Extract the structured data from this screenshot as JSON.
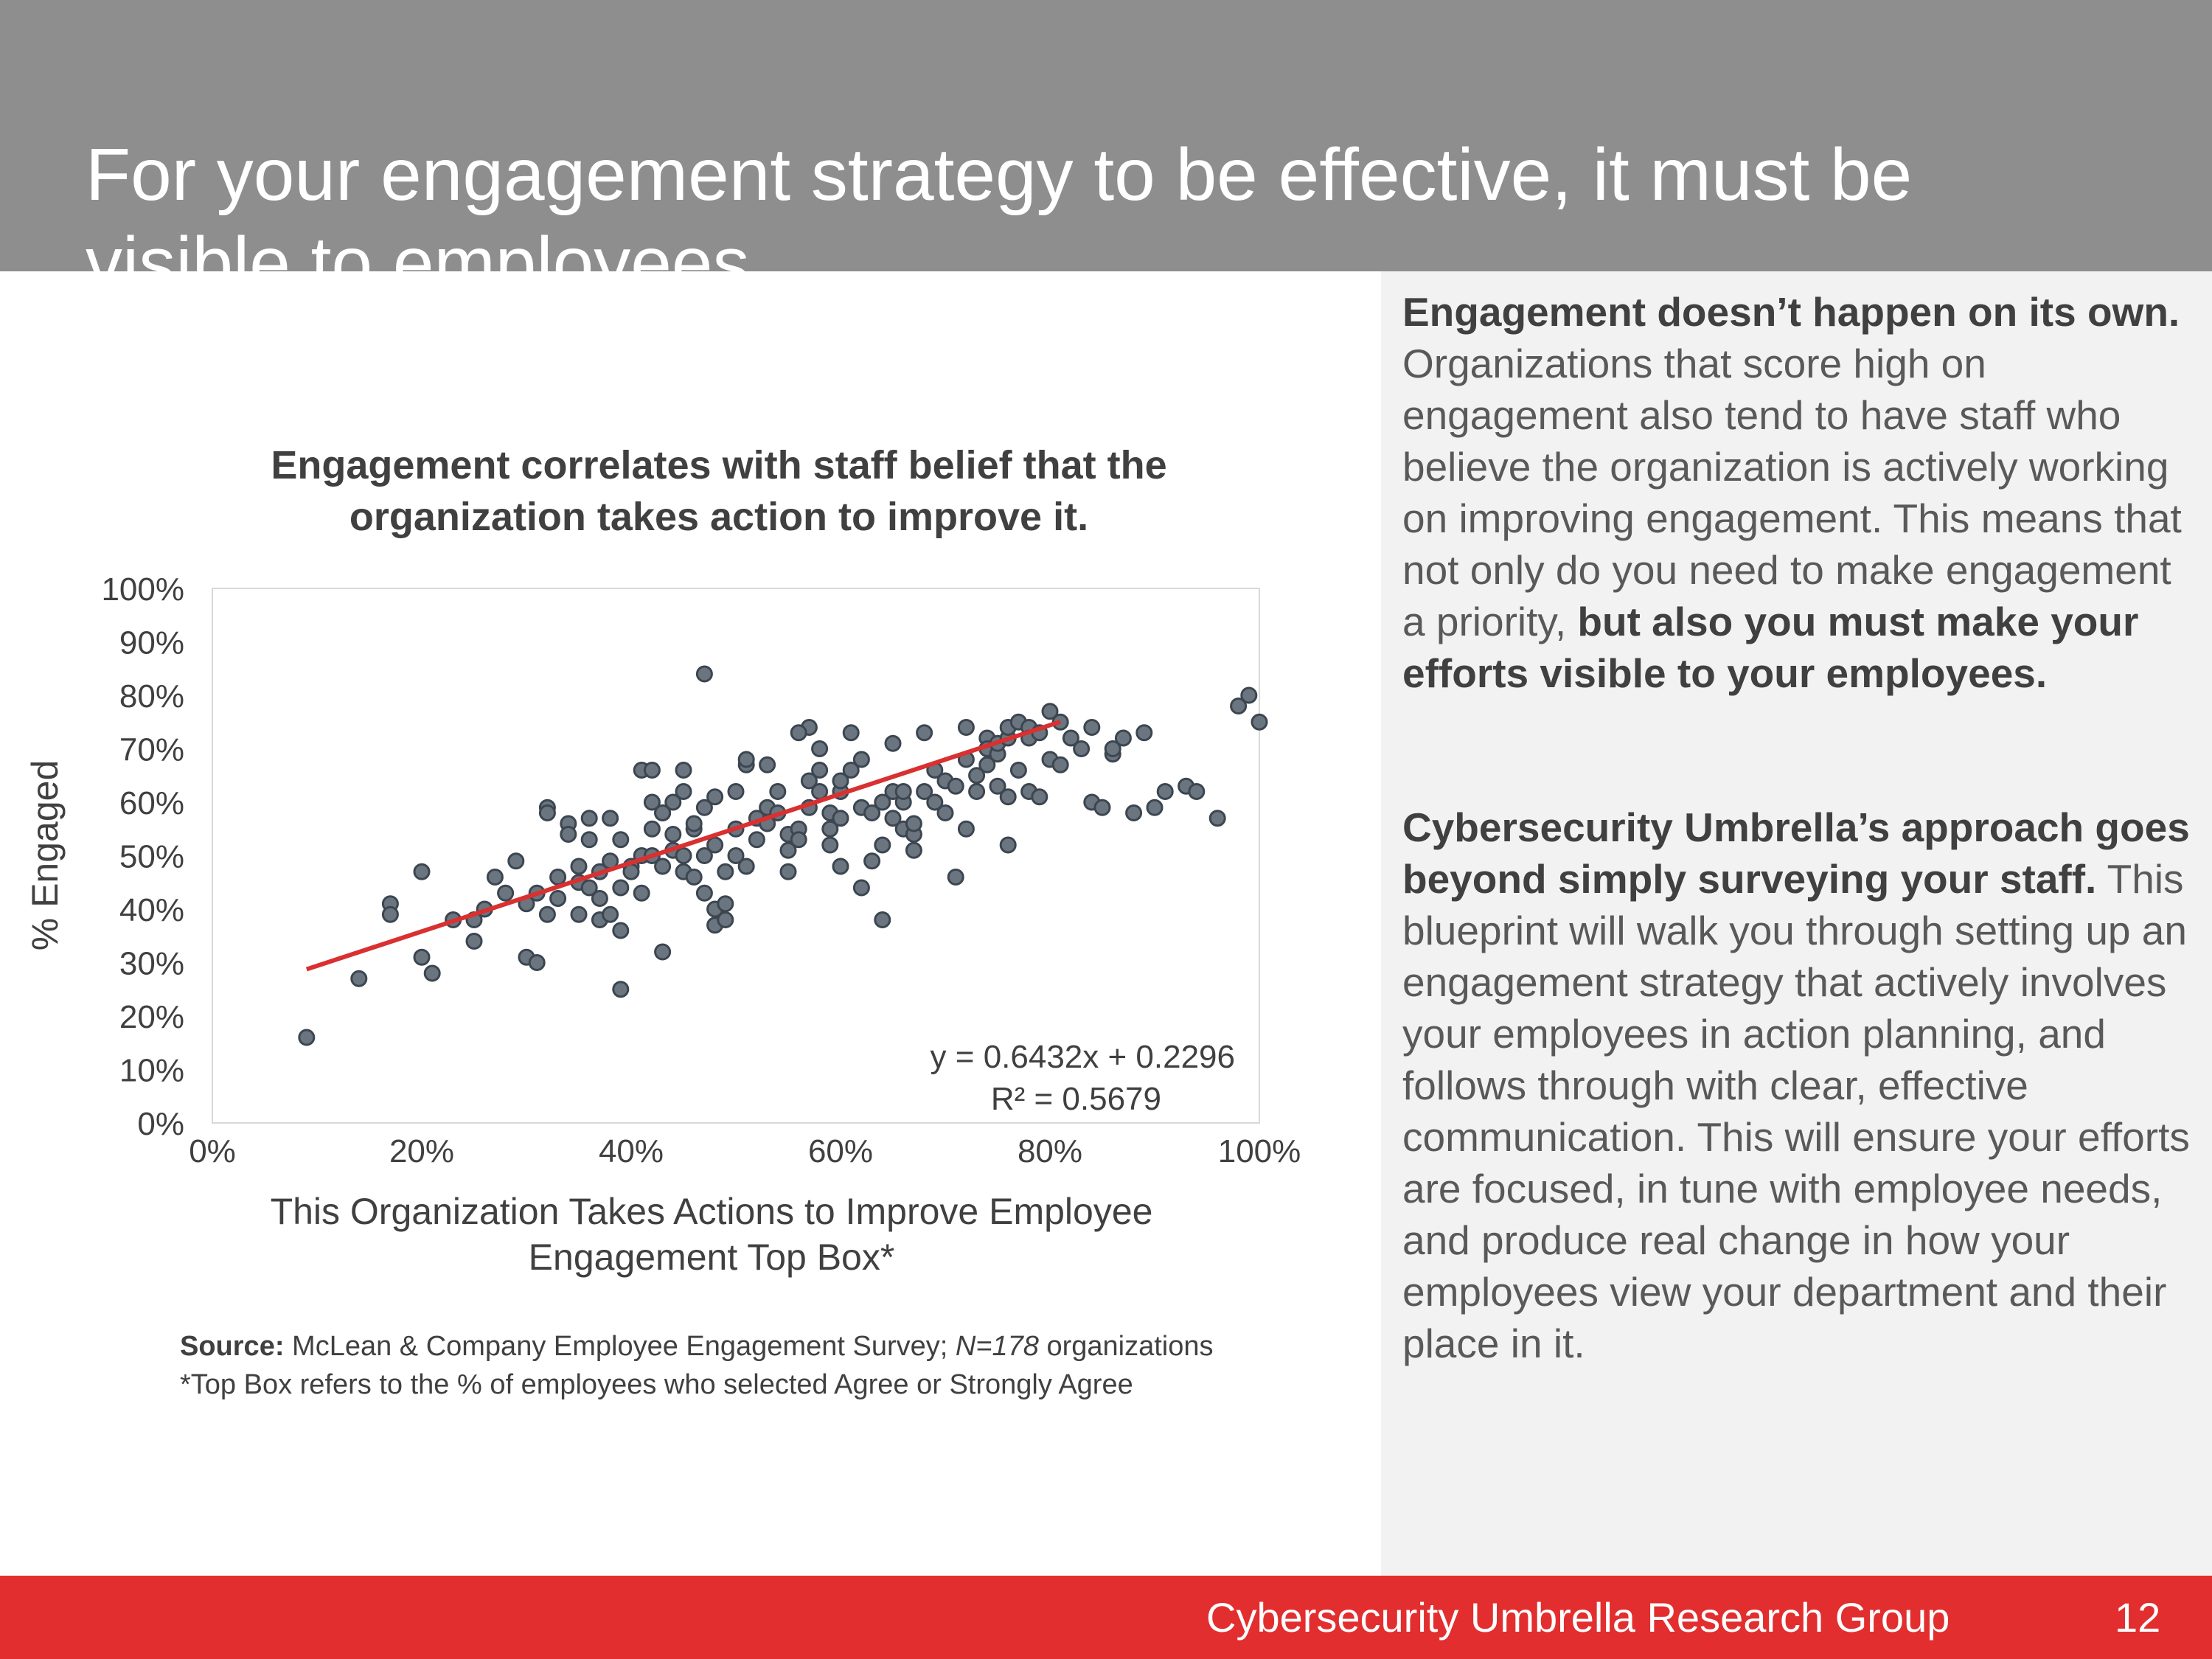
{
  "slide": {
    "title": "For your engagement strategy to be effective, it must be visible to employees"
  },
  "panel": {
    "p1_bold": "Engagement doesn’t happen on its own.",
    "p1_text": " Organizations that score high on engagement also tend to have staff who believe the organization is actively working on improving engagement. This means that not only do you need to make engagement a priority, ",
    "p1_bold2": "but also you must make your efforts visible to your employees.",
    "p2_bold": "Cybersecurity Umbrella’s approach goes beyond simply surveying your staff.",
    "p2_text": " This blueprint will walk you through setting up an engagement strategy that actively involves your employees in action planning, and follows through with clear, effective communication. This will ensure your efforts are focused, in tune with employee needs, and produce real change in how your employees view your department and their place in it."
  },
  "chart_data": {
    "type": "scatter",
    "title": "Engagement correlates with staff belief that the organization takes action to improve it.",
    "xlabel": "This Organization Takes Actions to Improve Employee Engagement Top Box*",
    "ylabel": "% Engaged",
    "xlim": [
      0,
      1
    ],
    "ylim": [
      0,
      1
    ],
    "x_ticks": [
      "0%",
      "20%",
      "40%",
      "60%",
      "80%",
      "100%"
    ],
    "y_ticks": [
      "0%",
      "10%",
      "20%",
      "30%",
      "40%",
      "50%",
      "60%",
      "70%",
      "80%",
      "90%",
      "100%"
    ],
    "grid": false,
    "point_color": "#6b7580",
    "trend_color": "#d93030",
    "trendline": {
      "slope": 0.6432,
      "intercept": 0.2296,
      "x_range": [
        0.09,
        0.81
      ]
    },
    "equation": "y = 0.6432x + 0.2296",
    "r_squared": "R² = 0.5679",
    "points": [
      [
        0.09,
        0.16
      ],
      [
        0.14,
        0.27
      ],
      [
        0.17,
        0.41
      ],
      [
        0.17,
        0.39
      ],
      [
        0.2,
        0.47
      ],
      [
        0.2,
        0.31
      ],
      [
        0.21,
        0.28
      ],
      [
        0.23,
        0.38
      ],
      [
        0.25,
        0.34
      ],
      [
        0.25,
        0.38
      ],
      [
        0.26,
        0.4
      ],
      [
        0.27,
        0.46
      ],
      [
        0.28,
        0.43
      ],
      [
        0.29,
        0.49
      ],
      [
        0.3,
        0.41
      ],
      [
        0.3,
        0.31
      ],
      [
        0.31,
        0.3
      ],
      [
        0.31,
        0.43
      ],
      [
        0.32,
        0.39
      ],
      [
        0.32,
        0.59
      ],
      [
        0.32,
        0.58
      ],
      [
        0.33,
        0.46
      ],
      [
        0.33,
        0.42
      ],
      [
        0.34,
        0.56
      ],
      [
        0.34,
        0.54
      ],
      [
        0.35,
        0.48
      ],
      [
        0.35,
        0.45
      ],
      [
        0.35,
        0.39
      ],
      [
        0.36,
        0.53
      ],
      [
        0.36,
        0.44
      ],
      [
        0.36,
        0.57
      ],
      [
        0.37,
        0.47
      ],
      [
        0.37,
        0.38
      ],
      [
        0.37,
        0.42
      ],
      [
        0.38,
        0.57
      ],
      [
        0.38,
        0.49
      ],
      [
        0.38,
        0.39
      ],
      [
        0.39,
        0.36
      ],
      [
        0.39,
        0.25
      ],
      [
        0.39,
        0.44
      ],
      [
        0.4,
        0.48
      ],
      [
        0.4,
        0.47
      ],
      [
        0.41,
        0.5
      ],
      [
        0.41,
        0.66
      ],
      [
        0.41,
        0.43
      ],
      [
        0.42,
        0.55
      ],
      [
        0.42,
        0.6
      ],
      [
        0.42,
        0.66
      ],
      [
        0.42,
        0.5
      ],
      [
        0.43,
        0.58
      ],
      [
        0.43,
        0.48
      ],
      [
        0.43,
        0.32
      ],
      [
        0.44,
        0.54
      ],
      [
        0.44,
        0.6
      ],
      [
        0.44,
        0.51
      ],
      [
        0.45,
        0.47
      ],
      [
        0.45,
        0.5
      ],
      [
        0.45,
        0.62
      ],
      [
        0.46,
        0.46
      ],
      [
        0.46,
        0.55
      ],
      [
        0.46,
        0.56
      ],
      [
        0.47,
        0.59
      ],
      [
        0.47,
        0.5
      ],
      [
        0.47,
        0.43
      ],
      [
        0.47,
        0.84
      ],
      [
        0.48,
        0.61
      ],
      [
        0.48,
        0.52
      ],
      [
        0.48,
        0.4
      ],
      [
        0.48,
        0.37
      ],
      [
        0.49,
        0.41
      ],
      [
        0.49,
        0.38
      ],
      [
        0.49,
        0.47
      ],
      [
        0.5,
        0.5
      ],
      [
        0.5,
        0.55
      ],
      [
        0.5,
        0.62
      ],
      [
        0.51,
        0.67
      ],
      [
        0.51,
        0.48
      ],
      [
        0.52,
        0.57
      ],
      [
        0.52,
        0.53
      ],
      [
        0.53,
        0.59
      ],
      [
        0.53,
        0.56
      ],
      [
        0.54,
        0.58
      ],
      [
        0.54,
        0.62
      ],
      [
        0.55,
        0.51
      ],
      [
        0.55,
        0.54
      ],
      [
        0.56,
        0.55
      ],
      [
        0.56,
        0.53
      ],
      [
        0.57,
        0.64
      ],
      [
        0.57,
        0.59
      ],
      [
        0.58,
        0.66
      ],
      [
        0.58,
        0.62
      ],
      [
        0.58,
        0.7
      ],
      [
        0.59,
        0.55
      ],
      [
        0.59,
        0.52
      ],
      [
        0.59,
        0.58
      ],
      [
        0.6,
        0.57
      ],
      [
        0.6,
        0.62
      ],
      [
        0.6,
        0.64
      ],
      [
        0.61,
        0.73
      ],
      [
        0.61,
        0.66
      ],
      [
        0.62,
        0.68
      ],
      [
        0.62,
        0.59
      ],
      [
        0.63,
        0.58
      ],
      [
        0.63,
        0.49
      ],
      [
        0.64,
        0.38
      ],
      [
        0.64,
        0.6
      ],
      [
        0.64,
        0.52
      ],
      [
        0.65,
        0.62
      ],
      [
        0.65,
        0.71
      ],
      [
        0.65,
        0.57
      ],
      [
        0.66,
        0.55
      ],
      [
        0.66,
        0.6
      ],
      [
        0.67,
        0.51
      ],
      [
        0.67,
        0.54
      ],
      [
        0.67,
        0.56
      ],
      [
        0.68,
        0.62
      ],
      [
        0.68,
        0.73
      ],
      [
        0.69,
        0.6
      ],
      [
        0.69,
        0.66
      ],
      [
        0.7,
        0.64
      ],
      [
        0.7,
        0.58
      ],
      [
        0.71,
        0.46
      ],
      [
        0.71,
        0.63
      ],
      [
        0.72,
        0.55
      ],
      [
        0.72,
        0.68
      ],
      [
        0.73,
        0.62
      ],
      [
        0.74,
        0.72
      ],
      [
        0.74,
        0.7
      ],
      [
        0.74,
        0.67
      ],
      [
        0.75,
        0.69
      ],
      [
        0.75,
        0.63
      ],
      [
        0.75,
        0.71
      ],
      [
        0.76,
        0.72
      ],
      [
        0.76,
        0.74
      ],
      [
        0.76,
        0.61
      ],
      [
        0.76,
        0.52
      ],
      [
        0.77,
        0.66
      ],
      [
        0.77,
        0.75
      ],
      [
        0.78,
        0.74
      ],
      [
        0.78,
        0.62
      ],
      [
        0.78,
        0.72
      ],
      [
        0.79,
        0.73
      ],
      [
        0.79,
        0.61
      ],
      [
        0.8,
        0.68
      ],
      [
        0.8,
        0.77
      ],
      [
        0.81,
        0.75
      ],
      [
        0.72,
        0.74
      ],
      [
        0.73,
        0.65
      ],
      [
        0.81,
        0.67
      ],
      [
        0.82,
        0.72
      ],
      [
        0.83,
        0.7
      ],
      [
        0.84,
        0.74
      ],
      [
        0.84,
        0.6
      ],
      [
        0.85,
        0.59
      ],
      [
        0.86,
        0.69
      ],
      [
        0.86,
        0.7
      ],
      [
        0.87,
        0.72
      ],
      [
        0.88,
        0.58
      ],
      [
        0.89,
        0.73
      ],
      [
        0.9,
        0.59
      ],
      [
        0.91,
        0.62
      ],
      [
        0.93,
        0.63
      ],
      [
        0.94,
        0.62
      ],
      [
        0.96,
        0.57
      ],
      [
        0.98,
        0.78
      ],
      [
        0.99,
        0.8
      ],
      [
        1.0,
        0.75
      ],
      [
        0.55,
        0.47
      ],
      [
        0.53,
        0.67
      ],
      [
        0.45,
        0.66
      ],
      [
        0.57,
        0.74
      ],
      [
        0.6,
        0.48
      ],
      [
        0.62,
        0.44
      ],
      [
        0.66,
        0.62
      ],
      [
        0.51,
        0.68
      ],
      [
        0.56,
        0.73
      ],
      [
        0.43,
        0.58
      ],
      [
        0.39,
        0.53
      ]
    ]
  },
  "footnote": {
    "source_label": "Source:",
    "source_text_a": " McLean & Company Employee Engagement Survey; ",
    "source_n": "N=178",
    "source_text_b": " organizations",
    "topbox_note": "*Top Box refers to the % of employees who selected Agree or Strongly Agree"
  },
  "footer": {
    "org": "Cybersecurity Umbrella Research Group",
    "page_number": "12"
  }
}
